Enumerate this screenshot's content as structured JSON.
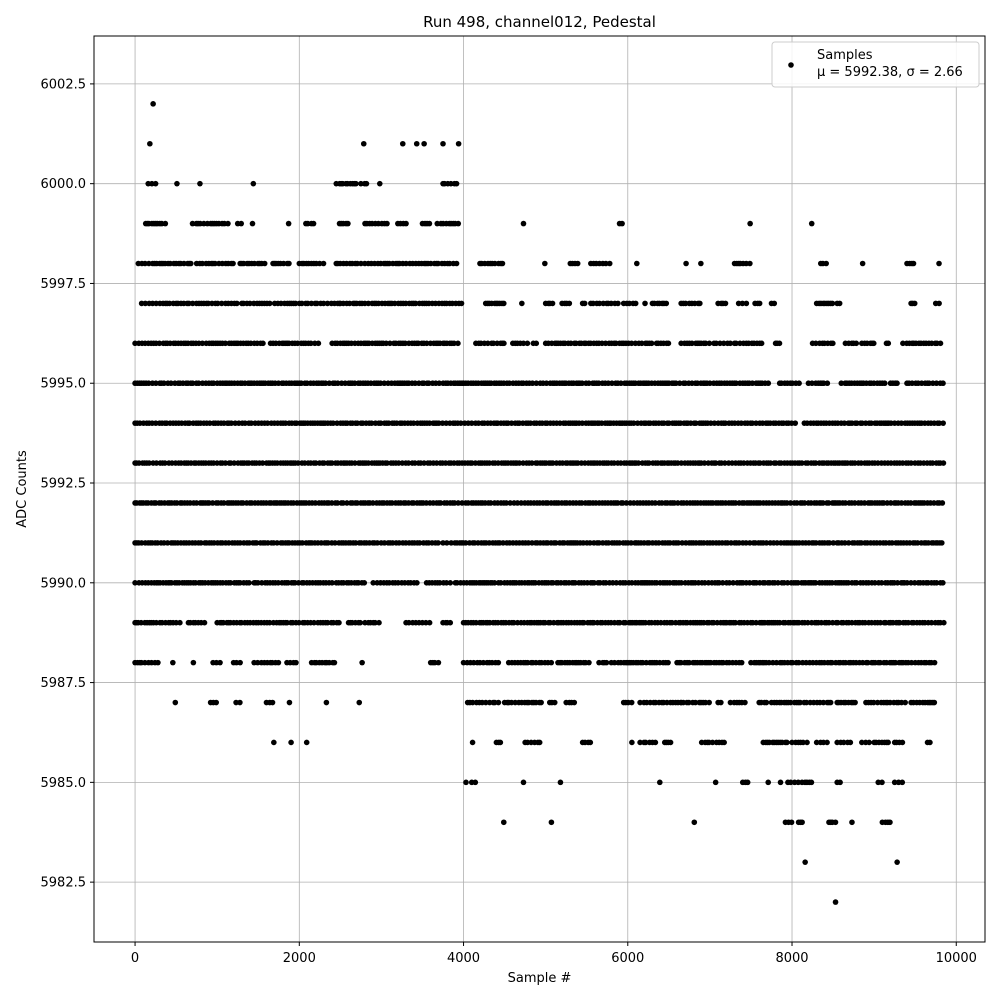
{
  "chart_data": {
    "type": "scatter",
    "title": "Run 498, channel012, Pedestal",
    "xlabel": "Sample #",
    "ylabel": "ADC Counts",
    "xlim": [
      -500,
      10350
    ],
    "ylim": [
      5981.0,
      6003.7
    ],
    "xticks": [
      0,
      2000,
      4000,
      6000,
      8000,
      10000
    ],
    "xtick_labels": [
      "0",
      "2000",
      "4000",
      "6000",
      "8000",
      "10000"
    ],
    "yticks": [
      5982.5,
      5985.0,
      5987.5,
      5990.0,
      5992.5,
      5995.0,
      5997.5,
      6000.0,
      6002.5
    ],
    "ytick_labels": [
      "5982.5",
      "5985.0",
      "5987.5",
      "5990.0",
      "5992.5",
      "5995.0",
      "5997.5",
      "6000.0",
      "6002.5"
    ],
    "grid": true,
    "legend": {
      "position": "top-right",
      "entries": [
        {
          "name": "Samples",
          "stats": "μ = 5992.38, σ = 2.66",
          "color": "#000000"
        }
      ]
    },
    "series": [
      {
        "name": "Samples",
        "color": "#000000",
        "levels": [
          {
            "y": 6002,
            "x_ranges": [
              [
                210,
                230
              ]
            ]
          },
          {
            "y": 6001,
            "x_ranges": [
              [
                170,
                190
              ],
              [
                2780,
                2790
              ],
              [
                3250,
                3270
              ],
              [
                3420,
                3440
              ],
              [
                3510,
                3530
              ],
              [
                3740,
                3760
              ],
              [
                3930,
                3950
              ]
            ]
          },
          {
            "y": 6000,
            "x_ranges": [
              [
                160,
                270
              ],
              [
                500,
                520
              ],
              [
                780,
                800
              ],
              [
                1430,
                1450
              ],
              [
                2450,
                2700
              ],
              [
                2750,
                2850
              ],
              [
                2970,
                2990
              ],
              [
                3750,
                3920
              ]
            ]
          },
          {
            "y": 5999,
            "x_ranges": [
              [
                130,
                370
              ],
              [
                700,
                1150
              ],
              [
                1250,
                1300
              ],
              [
                1420,
                1440
              ],
              [
                1860,
                1880
              ],
              [
                2080,
                2180
              ],
              [
                2490,
                2600
              ],
              [
                2800,
                3100
              ],
              [
                3200,
                3320
              ],
              [
                3500,
                3600
              ],
              [
                3680,
                3960
              ],
              [
                4720,
                4740
              ],
              [
                5900,
                5960
              ],
              [
                7480,
                7500
              ],
              [
                8230,
                8250
              ]
            ]
          },
          {
            "y": 5998,
            "x_ranges": [
              [
                40,
                700
              ],
              [
                750,
                1200
              ],
              [
                1280,
                1580
              ],
              [
                1680,
                1900
              ],
              [
                2000,
                2300
              ],
              [
                2450,
                3950
              ],
              [
                4200,
                4500
              ],
              [
                4980,
                5000
              ],
              [
                5300,
                5400
              ],
              [
                5550,
                5800
              ],
              [
                6100,
                6120
              ],
              [
                6700,
                6720
              ],
              [
                6880,
                6900
              ],
              [
                7300,
                7500
              ],
              [
                8350,
                8450
              ],
              [
                8850,
                8870
              ],
              [
                9400,
                9500
              ],
              [
                9780,
                9800
              ]
            ]
          },
          {
            "y": 5997,
            "x_ranges": [
              [
                80,
                1250
              ],
              [
                1300,
                1650
              ],
              [
                1700,
                2500
              ],
              [
                2500,
                3990
              ],
              [
                4270,
                4500
              ],
              [
                4700,
                4720
              ],
              [
                5000,
                5100
              ],
              [
                5200,
                5300
              ],
              [
                5450,
                5500
              ],
              [
                5550,
                5900
              ],
              [
                5950,
                6100
              ],
              [
                6200,
                6220
              ],
              [
                6300,
                6500
              ],
              [
                6650,
                6900
              ],
              [
                7100,
                7200
              ],
              [
                7350,
                7450
              ],
              [
                7550,
                7650
              ],
              [
                7750,
                7800
              ],
              [
                8300,
                8500
              ],
              [
                8550,
                8600
              ],
              [
                9450,
                9500
              ],
              [
                9750,
                9800
              ]
            ]
          },
          {
            "y": 5996,
            "x_ranges": [
              [
                0,
                1600
              ],
              [
                1650,
                2250
              ],
              [
                2400,
                3950
              ],
              [
                4150,
                4500
              ],
              [
                4600,
                4800
              ],
              [
                4850,
                4900
              ],
              [
                5000,
                6300
              ],
              [
                6350,
                6500
              ],
              [
                6650,
                7000
              ],
              [
                7050,
                7250
              ],
              [
                7300,
                7650
              ],
              [
                7800,
                7850
              ],
              [
                8250,
                8500
              ],
              [
                8650,
                8800
              ],
              [
                8850,
                9000
              ],
              [
                9150,
                9200
              ],
              [
                9350,
                9850
              ]
            ]
          },
          {
            "y": 5995,
            "x_ranges": [
              [
                0,
                4000
              ],
              [
                4000,
                5200
              ],
              [
                5200,
                6400
              ],
              [
                6400,
                7300
              ],
              [
                7300,
                7750
              ],
              [
                7850,
                8100
              ],
              [
                8200,
                8450
              ],
              [
                8600,
                8850
              ],
              [
                8850,
                9150
              ],
              [
                9200,
                9300
              ],
              [
                9400,
                9850
              ]
            ]
          },
          {
            "y": 5994,
            "x_ranges": [
              [
                0,
                8050
              ],
              [
                8150,
                9850
              ]
            ]
          },
          {
            "y": 5993,
            "x_ranges": [
              [
                0,
                9850
              ]
            ]
          },
          {
            "y": 5992,
            "x_ranges": [
              [
                0,
                9850
              ]
            ]
          },
          {
            "y": 5991,
            "x_ranges": [
              [
                0,
                3700
              ],
              [
                3750,
                3800
              ],
              [
                3850,
                9850
              ]
            ]
          },
          {
            "y": 5990,
            "x_ranges": [
              [
                0,
                1400
              ],
              [
                1450,
                2400
              ],
              [
                2450,
                2800
              ],
              [
                2900,
                3450
              ],
              [
                3550,
                3850
              ],
              [
                3900,
                9850
              ]
            ]
          },
          {
            "y": 5989,
            "x_ranges": [
              [
                0,
                550
              ],
              [
                650,
                850
              ],
              [
                1000,
                2500
              ],
              [
                2600,
                2750
              ],
              [
                2800,
                3000
              ],
              [
                3300,
                3600
              ],
              [
                3750,
                3850
              ],
              [
                4000,
                9850
              ]
            ]
          },
          {
            "y": 5988,
            "x_ranges": [
              [
                0,
                300
              ],
              [
                450,
                470
              ],
              [
                700,
                720
              ],
              [
                950,
                1050
              ],
              [
                1200,
                1300
              ],
              [
                1450,
                1750
              ],
              [
                1850,
                2000
              ],
              [
                2150,
                2450
              ],
              [
                2750,
                2780
              ],
              [
                3600,
                3700
              ],
              [
                4000,
                4450
              ],
              [
                4550,
                5100
              ],
              [
                5150,
                5550
              ],
              [
                5650,
                5750
              ],
              [
                5800,
                6500
              ],
              [
                6600,
                7400
              ],
              [
                7500,
                9750
              ]
            ]
          },
          {
            "y": 5987,
            "x_ranges": [
              [
                480,
                500
              ],
              [
                920,
                1000
              ],
              [
                1230,
                1300
              ],
              [
                1600,
                1700
              ],
              [
                1870,
                1890
              ],
              [
                2320,
                2340
              ],
              [
                2720,
                2740
              ],
              [
                4050,
                4450
              ],
              [
                4500,
                4950
              ],
              [
                5050,
                5150
              ],
              [
                5250,
                5350
              ],
              [
                5950,
                6050
              ],
              [
                6150,
                6650
              ],
              [
                6650,
                7000
              ],
              [
                7100,
                7150
              ],
              [
                7250,
                7450
              ],
              [
                7600,
                7700
              ],
              [
                7750,
                8100
              ],
              [
                8100,
                8500
              ],
              [
                8550,
                8800
              ],
              [
                8900,
                9400
              ],
              [
                9450,
                9750
              ]
            ]
          },
          {
            "y": 5986,
            "x_ranges": [
              [
                1680,
                1700
              ],
              [
                1890,
                1910
              ],
              [
                2080,
                2100
              ],
              [
                4100,
                4120
              ],
              [
                4400,
                4450
              ],
              [
                4750,
                4950
              ],
              [
                5450,
                5550
              ],
              [
                6050,
                6050
              ],
              [
                6150,
                6350
              ],
              [
                6450,
                6550
              ],
              [
                6900,
                7200
              ],
              [
                7650,
                7950
              ],
              [
                8000,
                8200
              ],
              [
                8300,
                8450
              ],
              [
                8550,
                8750
              ],
              [
                8850,
                8950
              ],
              [
                9000,
                9200
              ],
              [
                9250,
                9350
              ],
              [
                9650,
                9700
              ]
            ]
          },
          {
            "y": 5985,
            "x_ranges": [
              [
                4020,
                4040
              ],
              [
                4100,
                4150
              ],
              [
                4720,
                4740
              ],
              [
                5170,
                5190
              ],
              [
                6380,
                6400
              ],
              [
                7060,
                7080
              ],
              [
                7400,
                7500
              ],
              [
                7700,
                7720
              ],
              [
                7850,
                7870
              ],
              [
                7950,
                8250
              ],
              [
                8550,
                8600
              ],
              [
                9050,
                9100
              ],
              [
                9250,
                9350
              ]
            ]
          },
          {
            "y": 5984,
            "x_ranges": [
              [
                4480,
                4500
              ],
              [
                5060,
                5080
              ],
              [
                6800,
                6820
              ],
              [
                7920,
                8000
              ],
              [
                8080,
                8150
              ],
              [
                8450,
                8550
              ],
              [
                8720,
                8740
              ],
              [
                9100,
                9200
              ]
            ]
          },
          {
            "y": 5983,
            "x_ranges": [
              [
                8150,
                8170
              ],
              [
                9270,
                9290
              ]
            ]
          },
          {
            "y": 5982,
            "x_ranges": [
              [
                8520,
                8540
              ]
            ]
          }
        ]
      }
    ]
  }
}
